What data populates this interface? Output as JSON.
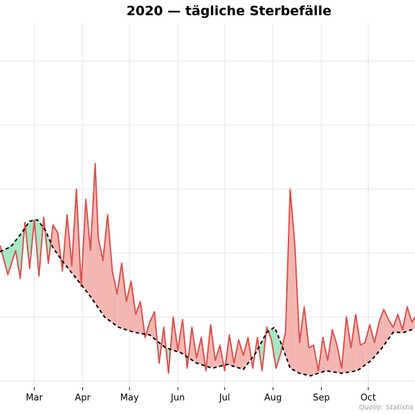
{
  "chart_data": {
    "type": "line",
    "title": "2020 — tägliche Sterbefälle",
    "source_note": "Quelle: Statistis",
    "xlabel": "",
    "ylabel": "",
    "xlim": [
      "2020-02-08",
      "2020-10-31"
    ],
    "x_ticks": [
      {
        "date": "2020-03-01",
        "label": "Mar"
      },
      {
        "date": "2020-04-01",
        "label": "Apr"
      },
      {
        "date": "2020-05-01",
        "label": "May"
      },
      {
        "date": "2020-06-01",
        "label": "Jun"
      },
      {
        "date": "2020-07-01",
        "label": "Jul"
      },
      {
        "date": "2020-08-01",
        "label": "Aug"
      },
      {
        "date": "2020-09-01",
        "label": "Sep"
      },
      {
        "date": "2020-10-01",
        "label": "Oct"
      }
    ],
    "grid": true,
    "colors": {
      "actual_line": "#d9534f",
      "excess_fill": "#f4b6b2",
      "deficit_fill": "#a8e6c4",
      "expected_line": "#000000"
    },
    "series": [
      {
        "style": "solid",
        "x": [
          "2020-02-08",
          "2020-02-13",
          "2020-02-18",
          "2020-02-21",
          "2020-02-24",
          "2020-02-27",
          "2020-03-01",
          "2020-03-04",
          "2020-03-07",
          "2020-03-10",
          "2020-03-13",
          "2020-03-16",
          "2020-03-19",
          "2020-03-22",
          "2020-03-25",
          "2020-03-28",
          "2020-03-31",
          "2020-04-03",
          "2020-04-06",
          "2020-04-09",
          "2020-04-11",
          "2020-04-14",
          "2020-04-17",
          "2020-04-20",
          "2020-04-23",
          "2020-04-26",
          "2020-04-29",
          "2020-05-02",
          "2020-05-05",
          "2020-05-08",
          "2020-05-11",
          "2020-05-14",
          "2020-05-17",
          "2020-05-20",
          "2020-05-23",
          "2020-05-26",
          "2020-05-29",
          "2020-06-01",
          "2020-06-04",
          "2020-06-07",
          "2020-06-10",
          "2020-06-13",
          "2020-06-16",
          "2020-06-19",
          "2020-06-22",
          "2020-06-25",
          "2020-06-28",
          "2020-07-01",
          "2020-07-04",
          "2020-07-07",
          "2020-07-10",
          "2020-07-13",
          "2020-07-16",
          "2020-07-19",
          "2020-07-22",
          "2020-07-25",
          "2020-07-28",
          "2020-07-31",
          "2020-08-03",
          "2020-08-06",
          "2020-08-09",
          "2020-08-12",
          "2020-08-15",
          "2020-08-18",
          "2020-08-21",
          "2020-08-24",
          "2020-08-27",
          "2020-08-30",
          "2020-09-02",
          "2020-09-05",
          "2020-09-08",
          "2020-09-11",
          "2020-09-14",
          "2020-09-17",
          "2020-09-20",
          "2020-09-23",
          "2020-09-26",
          "2020-09-29",
          "2020-10-02",
          "2020-10-05",
          "2020-10-08",
          "2020-10-11",
          "2020-10-14",
          "2020-10-17",
          "2020-10-20",
          "2020-10-23",
          "2020-10-26",
          "2020-10-29",
          "2020-10-31"
        ],
        "y": [
          2780,
          2665,
          2760,
          2650,
          2870,
          2690,
          2880,
          2660,
          2890,
          2710,
          2860,
          2830,
          2680,
          2900,
          2700,
          3000,
          2620,
          2960,
          2760,
          3100,
          2810,
          2720,
          2900,
          2680,
          2590,
          2710,
          2560,
          2640,
          2510,
          2560,
          2420,
          2480,
          2520,
          2320,
          2460,
          2280,
          2500,
          2370,
          2490,
          2300,
          2460,
          2340,
          2420,
          2290,
          2470,
          2330,
          2390,
          2290,
          2430,
          2320,
          2410,
          2350,
          2420,
          2300,
          2420,
          2290,
          2460,
          2410,
          2300,
          2360,
          2440,
          3000,
          2780,
          2400,
          2540,
          2380,
          2390,
          2290,
          2420,
          2330,
          2450,
          2390,
          2300,
          2500,
          2380,
          2510,
          2390,
          2400,
          2470,
          2400,
          2480,
          2530,
          2490,
          2460,
          2510,
          2450,
          2540,
          2480,
          2500
        ]
      },
      {
        "style": "dashed",
        "x": [
          "2020-02-08",
          "2020-02-15",
          "2020-02-22",
          "2020-02-27",
          "2020-03-03",
          "2020-03-08",
          "2020-03-13",
          "2020-03-20",
          "2020-03-28",
          "2020-04-06",
          "2020-04-15",
          "2020-04-24",
          "2020-05-04",
          "2020-05-14",
          "2020-05-24",
          "2020-06-03",
          "2020-06-13",
          "2020-06-23",
          "2020-07-03",
          "2020-07-13",
          "2020-07-21",
          "2020-07-28",
          "2020-08-02",
          "2020-08-06",
          "2020-08-12",
          "2020-08-18",
          "2020-08-25",
          "2020-09-04",
          "2020-09-14",
          "2020-09-24",
          "2020-10-03",
          "2020-10-10",
          "2020-10-17",
          "2020-10-24",
          "2020-10-31"
        ],
        "y": [
          2755,
          2775,
          2830,
          2875,
          2880,
          2840,
          2770,
          2710,
          2650,
          2580,
          2500,
          2460,
          2440,
          2430,
          2380,
          2360,
          2320,
          2300,
          2315,
          2295,
          2360,
          2440,
          2460,
          2400,
          2300,
          2280,
          2270,
          2290,
          2280,
          2290,
          2330,
          2380,
          2440,
          2440,
          2455
        ]
      }
    ]
  }
}
